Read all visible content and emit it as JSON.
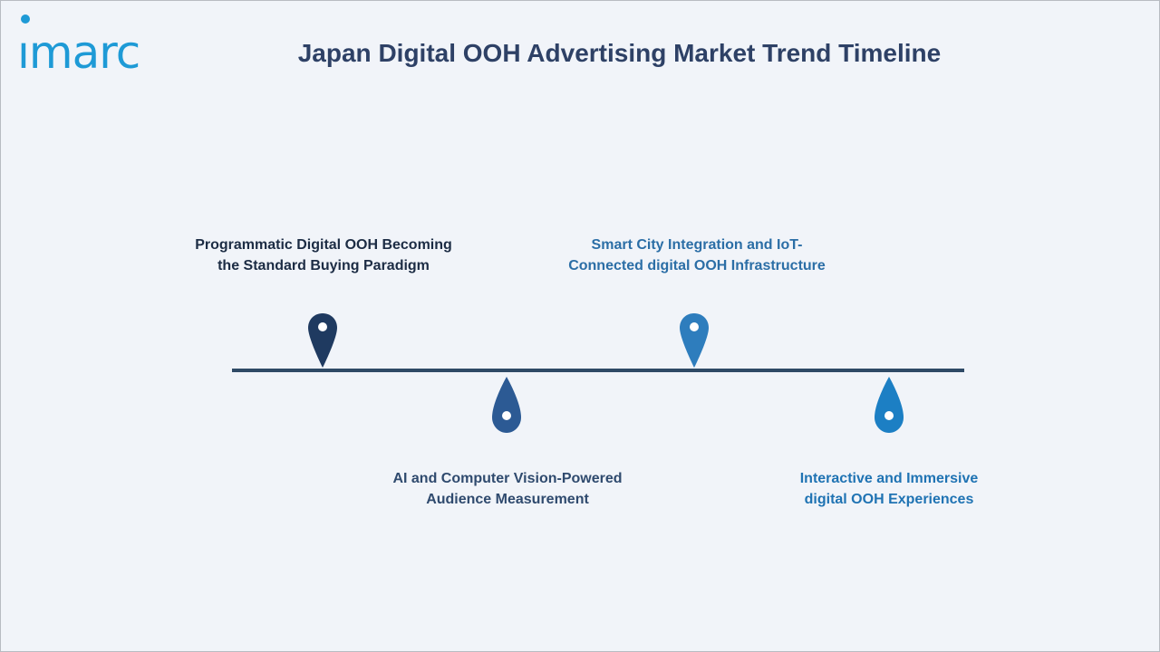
{
  "logo": {
    "text": "ımarc"
  },
  "title": "Japan Digital OOH Advertising Market Trend Timeline",
  "colors": {
    "title": "#2e4166",
    "line": "#2f4a66",
    "logo": "#1e9ad6"
  },
  "milestones": [
    {
      "line1": "Programmatic Digital OOH Becoming",
      "line2": "the Standard Buying Paradigm",
      "position": "above",
      "color": "#1f3a60",
      "text_color": "#1c2c44",
      "icon": "map-pin-icon"
    },
    {
      "line1": "AI and Computer Vision-Powered",
      "line2": "Audience Measurement",
      "position": "below",
      "color": "#2c5a94",
      "text_color": "#2f4a6e",
      "icon": "drop-pin-icon"
    },
    {
      "line1": "Smart City Integration and IoT-",
      "line2": "Connected digital OOH Infrastructure",
      "position": "above",
      "color": "#2e7dbd",
      "text_color": "#2b6ea6",
      "icon": "map-pin-icon"
    },
    {
      "line1": "Interactive and Immersive",
      "line2": "digital OOH Experiences",
      "position": "below",
      "color": "#1c7fc4",
      "text_color": "#1f73b3",
      "icon": "drop-pin-icon"
    }
  ]
}
